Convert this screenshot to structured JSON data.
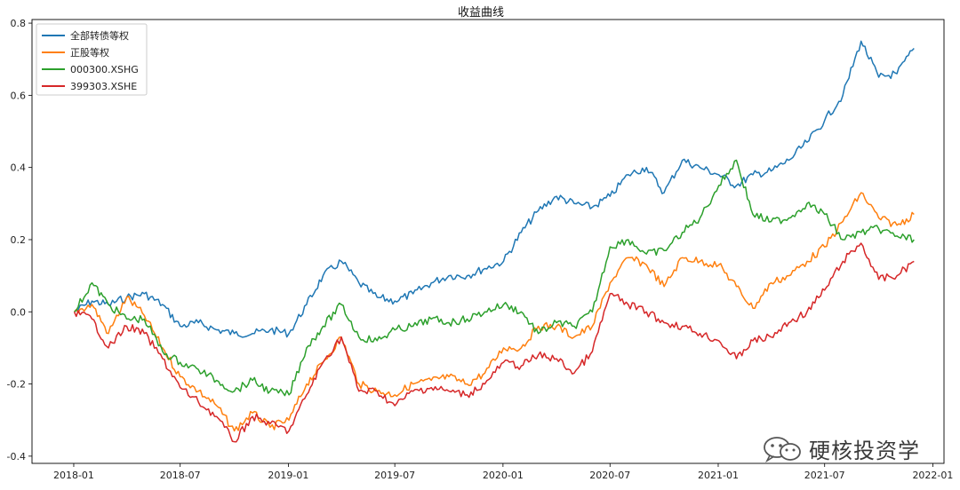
{
  "chart_data": {
    "type": "line",
    "title": "收益曲线",
    "xlabel": "",
    "ylabel": "",
    "x_ticks": [
      "2018-01",
      "2018-07",
      "2019-01",
      "2019-07",
      "2020-01",
      "2020-07",
      "2021-01",
      "2021-07",
      "2022-01"
    ],
    "y_ticks": [
      "-0.4",
      "-0.2",
      "0.0",
      "0.2",
      "0.4",
      "0.6",
      "0.8"
    ],
    "xlim": [
      "2017-10-22",
      "2022-01-20"
    ],
    "ylim": [
      -0.42,
      0.81
    ],
    "grid": false,
    "legend_position": "top-left",
    "x": [
      "2018-01-02",
      "2018-02-01",
      "2018-03-01",
      "2018-04-01",
      "2018-05-01",
      "2018-06-01",
      "2018-07-01",
      "2018-08-01",
      "2018-09-01",
      "2018-10-01",
      "2018-11-01",
      "2018-12-01",
      "2019-01-02",
      "2019-02-01",
      "2019-03-01",
      "2019-04-01",
      "2019-05-01",
      "2019-06-01",
      "2019-07-01",
      "2019-08-01",
      "2019-09-01",
      "2019-10-01",
      "2019-11-01",
      "2019-12-01",
      "2020-01-02",
      "2020-02-01",
      "2020-03-01",
      "2020-04-01",
      "2020-05-01",
      "2020-06-01",
      "2020-07-01",
      "2020-08-01",
      "2020-09-01",
      "2020-10-01",
      "2020-11-01",
      "2020-12-01",
      "2021-01-02",
      "2021-02-01",
      "2021-03-01",
      "2021-04-01",
      "2021-05-01",
      "2021-06-01",
      "2021-07-01",
      "2021-08-01",
      "2021-09-01",
      "2021-10-01",
      "2021-11-01",
      "2021-11-30"
    ],
    "series": [
      {
        "name": "全部转债等权",
        "color": "#1f77b4",
        "values": [
          0.0,
          0.03,
          0.02,
          0.04,
          0.05,
          0.02,
          -0.04,
          -0.03,
          -0.05,
          -0.06,
          -0.06,
          -0.05,
          -0.06,
          0.02,
          0.1,
          0.14,
          0.08,
          0.04,
          0.03,
          0.05,
          0.08,
          0.1,
          0.1,
          0.12,
          0.14,
          0.22,
          0.28,
          0.32,
          0.3,
          0.29,
          0.32,
          0.38,
          0.4,
          0.33,
          0.42,
          0.4,
          0.38,
          0.35,
          0.38,
          0.39,
          0.42,
          0.47,
          0.53,
          0.6,
          0.75,
          0.65,
          0.66,
          0.73
        ]
      },
      {
        "name": "正股等权",
        "color": "#ff7f0e",
        "values": [
          0.0,
          0.02,
          -0.06,
          0.04,
          -0.01,
          -0.1,
          -0.18,
          -0.22,
          -0.26,
          -0.33,
          -0.28,
          -0.32,
          -0.3,
          -0.2,
          -0.14,
          -0.07,
          -0.2,
          -0.22,
          -0.23,
          -0.2,
          -0.19,
          -0.18,
          -0.2,
          -0.17,
          -0.1,
          -0.1,
          -0.04,
          -0.04,
          -0.07,
          -0.04,
          0.08,
          0.15,
          0.13,
          0.07,
          0.15,
          0.14,
          0.13,
          0.07,
          0.01,
          0.08,
          0.1,
          0.14,
          0.18,
          0.25,
          0.33,
          0.26,
          0.24,
          0.27
        ]
      },
      {
        "name": "000300.XSHG",
        "color": "#2ca02c",
        "values": [
          0.0,
          0.08,
          0.02,
          -0.02,
          -0.02,
          -0.11,
          -0.14,
          -0.16,
          -0.19,
          -0.22,
          -0.19,
          -0.22,
          -0.23,
          -0.1,
          -0.04,
          0.02,
          -0.07,
          -0.08,
          -0.05,
          -0.04,
          -0.02,
          -0.03,
          -0.02,
          0.0,
          0.02,
          0.0,
          -0.06,
          -0.03,
          -0.04,
          0.0,
          0.18,
          0.2,
          0.16,
          0.17,
          0.22,
          0.26,
          0.35,
          0.42,
          0.27,
          0.25,
          0.26,
          0.3,
          0.27,
          0.2,
          0.22,
          0.23,
          0.21,
          0.2
        ]
      },
      {
        "name": "399303.XSHE",
        "color": "#d62728",
        "values": [
          0.0,
          -0.02,
          -0.1,
          -0.04,
          -0.06,
          -0.13,
          -0.21,
          -0.25,
          -0.29,
          -0.36,
          -0.29,
          -0.31,
          -0.33,
          -0.23,
          -0.14,
          -0.07,
          -0.22,
          -0.22,
          -0.26,
          -0.22,
          -0.21,
          -0.22,
          -0.23,
          -0.2,
          -0.14,
          -0.15,
          -0.12,
          -0.13,
          -0.17,
          -0.11,
          0.05,
          0.02,
          0.0,
          -0.03,
          -0.04,
          -0.06,
          -0.08,
          -0.13,
          -0.08,
          -0.07,
          -0.03,
          0.0,
          0.06,
          0.14,
          0.19,
          0.09,
          0.1,
          0.14
        ]
      }
    ]
  },
  "watermark": {
    "text": "硬核投资学",
    "icon": "wechat-icon"
  }
}
